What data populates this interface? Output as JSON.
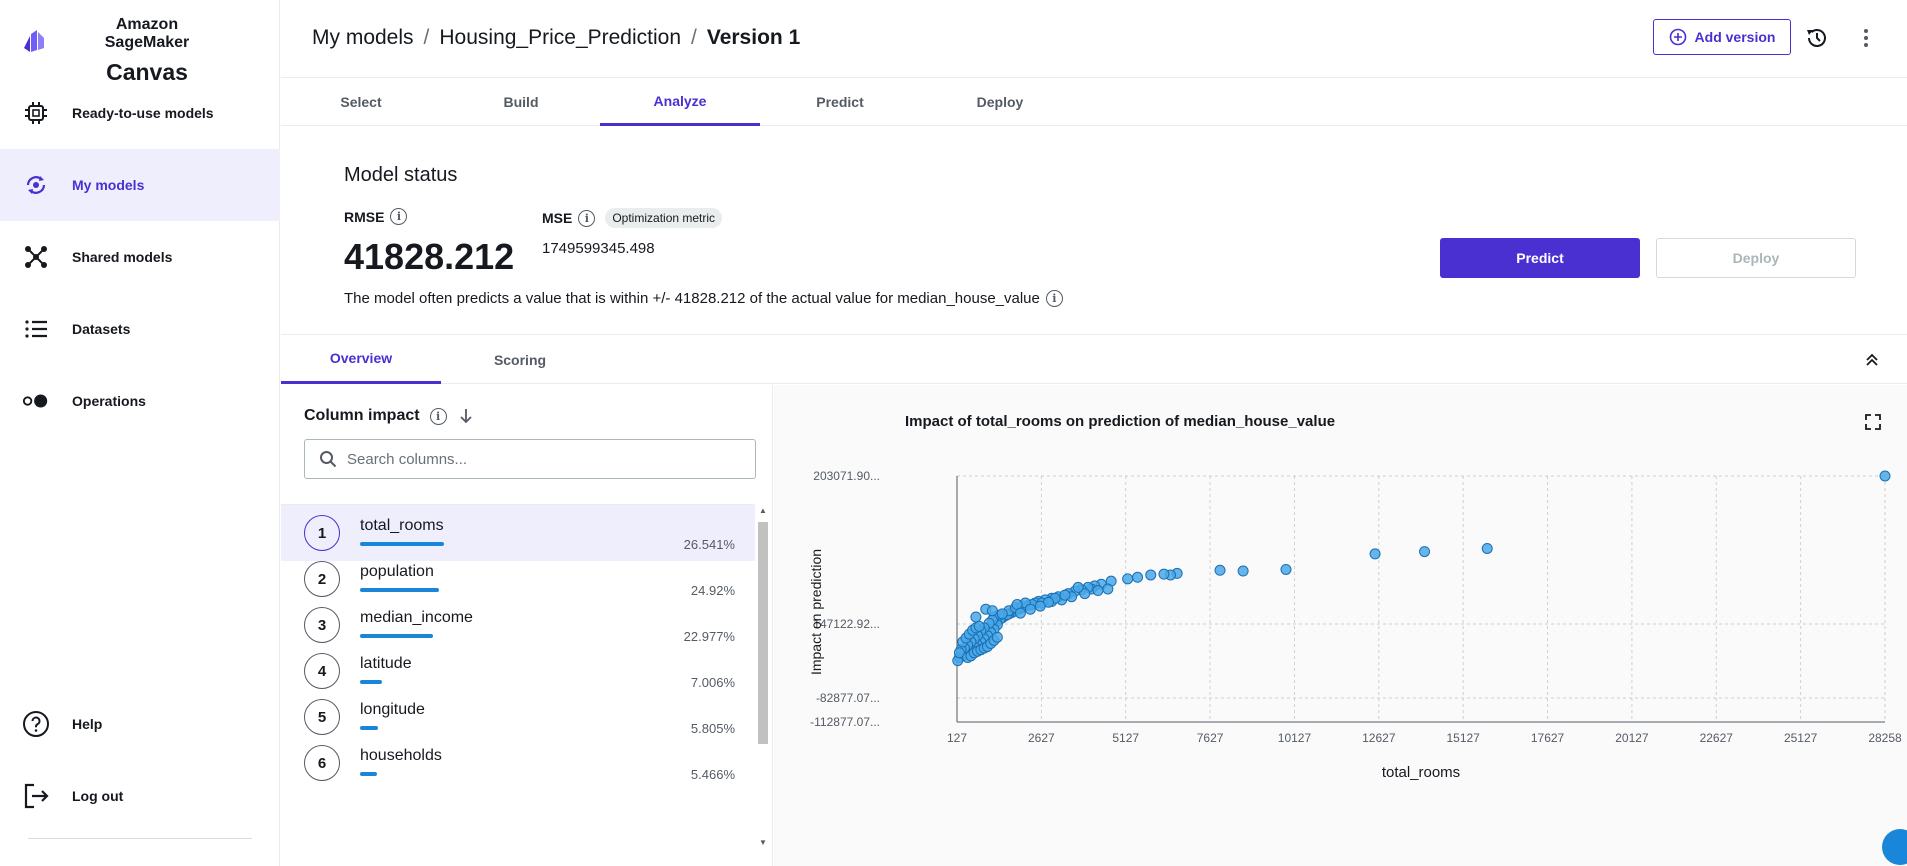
{
  "sidebar": {
    "brand_line1": "Amazon SageMaker",
    "brand_line2": "Canvas",
    "items": [
      {
        "label": "Ready-to-use models",
        "icon": "chip-icon"
      },
      {
        "label": "My models",
        "icon": "models-icon"
      },
      {
        "label": "Shared models",
        "icon": "share-icon"
      },
      {
        "label": "Datasets",
        "icon": "list-icon"
      },
      {
        "label": "Operations",
        "icon": "toggle-icon"
      }
    ],
    "bottom_items": [
      {
        "label": "Help",
        "icon": "help-icon"
      },
      {
        "label": "Log out",
        "icon": "logout-icon"
      }
    ]
  },
  "header": {
    "breadcrumb": [
      "My models",
      "Housing_Price_Prediction",
      "Version 1"
    ],
    "add_version": "Add version"
  },
  "steps": [
    "Select",
    "Build",
    "Analyze",
    "Predict",
    "Deploy"
  ],
  "active_step": "Analyze",
  "status": {
    "title": "Model status",
    "rmse_label": "RMSE",
    "rmse_value": "41828.212",
    "mse_label": "MSE",
    "mse_badge": "Optimization metric",
    "mse_value": "1749599345.498",
    "description": "The model often predicts a value that is within +/- 41828.212 of the actual value for median_house_value",
    "predict": "Predict",
    "deploy": "Deploy"
  },
  "subtabs": [
    "Overview",
    "Scoring"
  ],
  "impact": {
    "title": "Column impact",
    "search_placeholder": "Search columns...",
    "columns": [
      {
        "rank": "1",
        "name": "total_rooms",
        "pct": "26.541%",
        "value": 26.541
      },
      {
        "rank": "2",
        "name": "population",
        "pct": "24.92%",
        "value": 24.92
      },
      {
        "rank": "3",
        "name": "median_income",
        "pct": "22.977%",
        "value": 22.977
      },
      {
        "rank": "4",
        "name": "latitude",
        "pct": "7.006%",
        "value": 7.006
      },
      {
        "rank": "5",
        "name": "longitude",
        "pct": "5.805%",
        "value": 5.805
      },
      {
        "rank": "6",
        "name": "households",
        "pct": "5.466%",
        "value": 5.466
      }
    ]
  },
  "colors": {
    "accent": "#4a2fd1",
    "bar": "#1a86d9",
    "point": "#4aa8e8"
  },
  "chart_data": {
    "type": "scatter",
    "title": "Impact of total_rooms on prediction of median_house_value",
    "xlabel": "total_rooms",
    "ylabel": "Impact on prediction",
    "x_ticks": [
      "127",
      "2627",
      "5127",
      "7627",
      "10127",
      "12627",
      "15127",
      "17627",
      "20127",
      "22627",
      "25127",
      "28258"
    ],
    "y_ticks": [
      "-112877.07...",
      "-82877.07...",
      "147122.92...",
      "203071.90..."
    ],
    "xlim": [
      127,
      28258
    ],
    "ylim": [
      -112877.07,
      203071.9
    ],
    "grid": true,
    "points": [
      [
        28258,
        203071.9
      ],
      [
        16200,
        110000
      ],
      [
        14300,
        106000
      ],
      [
        12800,
        103000
      ],
      [
        10100,
        83000
      ],
      [
        8800,
        81000
      ],
      [
        8100,
        82000
      ],
      [
        6800,
        78000
      ],
      [
        6600,
        76000
      ],
      [
        6400,
        77000
      ],
      [
        6000,
        76000
      ],
      [
        5600,
        73000
      ],
      [
        5300,
        71000
      ],
      [
        4800,
        68000
      ],
      [
        4500,
        64000
      ],
      [
        4300,
        62000
      ],
      [
        4200,
        58000
      ],
      [
        4100,
        60000
      ],
      [
        3900,
        57000
      ],
      [
        3700,
        55000
      ],
      [
        3500,
        52000
      ],
      [
        3200,
        48000
      ],
      [
        3000,
        46000
      ],
      [
        2800,
        44000
      ],
      [
        2600,
        42000
      ],
      [
        2500,
        40000
      ],
      [
        2300,
        37000
      ],
      [
        2100,
        34000
      ],
      [
        2000,
        32000
      ],
      [
        1900,
        30000
      ],
      [
        1800,
        28000
      ],
      [
        1700,
        26000
      ],
      [
        1600,
        24000
      ],
      [
        1500,
        21000
      ],
      [
        1400,
        18000
      ],
      [
        1300,
        15000
      ],
      [
        1200,
        12000
      ],
      [
        1100,
        8000
      ],
      [
        1000,
        4000
      ],
      [
        900,
        0
      ],
      [
        800,
        -4000
      ],
      [
        700,
        -8000
      ],
      [
        600,
        -12000
      ],
      [
        500,
        -18000
      ],
      [
        400,
        -24000
      ],
      [
        300,
        -28000
      ],
      [
        200,
        -30000
      ],
      [
        150,
        -34000
      ],
      [
        1450,
        20000
      ],
      [
        1650,
        25000
      ],
      [
        1350,
        12000
      ],
      [
        1250,
        6000
      ],
      [
        1150,
        2000
      ],
      [
        1050,
        -2000
      ],
      [
        950,
        -6000
      ],
      [
        850,
        -10000
      ],
      [
        750,
        -14000
      ],
      [
        650,
        -16000
      ],
      [
        550,
        -20000
      ],
      [
        450,
        -22000
      ],
      [
        350,
        -26000
      ],
      [
        1400,
        24000
      ],
      [
        1250,
        22000
      ],
      [
        1200,
        18000
      ],
      [
        1100,
        14000
      ],
      [
        950,
        8000
      ],
      [
        850,
        4000
      ],
      [
        750,
        -2000
      ],
      [
        650,
        -6000
      ],
      [
        550,
        -10000
      ],
      [
        450,
        -14000
      ],
      [
        350,
        -18000
      ],
      [
        250,
        -20000
      ],
      [
        200,
        -24000
      ],
      [
        1700,
        30000
      ],
      [
        1900,
        34000
      ],
      [
        2100,
        36000
      ],
      [
        2400,
        38000
      ],
      [
        2700,
        40000
      ],
      [
        3000,
        42000
      ],
      [
        3300,
        44000
      ],
      [
        3600,
        48000
      ],
      [
        4000,
        52000
      ],
      [
        4400,
        56000
      ],
      [
        4700,
        58000
      ],
      [
        3800,
        60000
      ],
      [
        3400,
        50000
      ],
      [
        3100,
        46000
      ],
      [
        2900,
        41000
      ],
      [
        2200,
        40000
      ],
      [
        1950,
        38000
      ],
      [
        2050,
        27000
      ],
      [
        2350,
        32000
      ],
      [
        2650,
        36000
      ],
      [
        700,
        22000
      ],
      [
        1000,
        32000
      ],
      [
        1200,
        30000
      ],
      [
        1500,
        26000
      ],
      [
        300,
        -10000
      ],
      [
        400,
        -5000
      ],
      [
        500,
        0
      ],
      [
        600,
        5000
      ],
      [
        700,
        8000
      ],
      [
        800,
        10000
      ],
      [
        450,
        -30000
      ],
      [
        550,
        -28000
      ],
      [
        650,
        -24000
      ],
      [
        750,
        -22000
      ],
      [
        850,
        -20000
      ],
      [
        950,
        -18000
      ],
      [
        1050,
        -16000
      ],
      [
        1150,
        -12000
      ],
      [
        1250,
        -8000
      ],
      [
        1350,
        -4000
      ]
    ]
  },
  "fab_icon": "chat-icon"
}
